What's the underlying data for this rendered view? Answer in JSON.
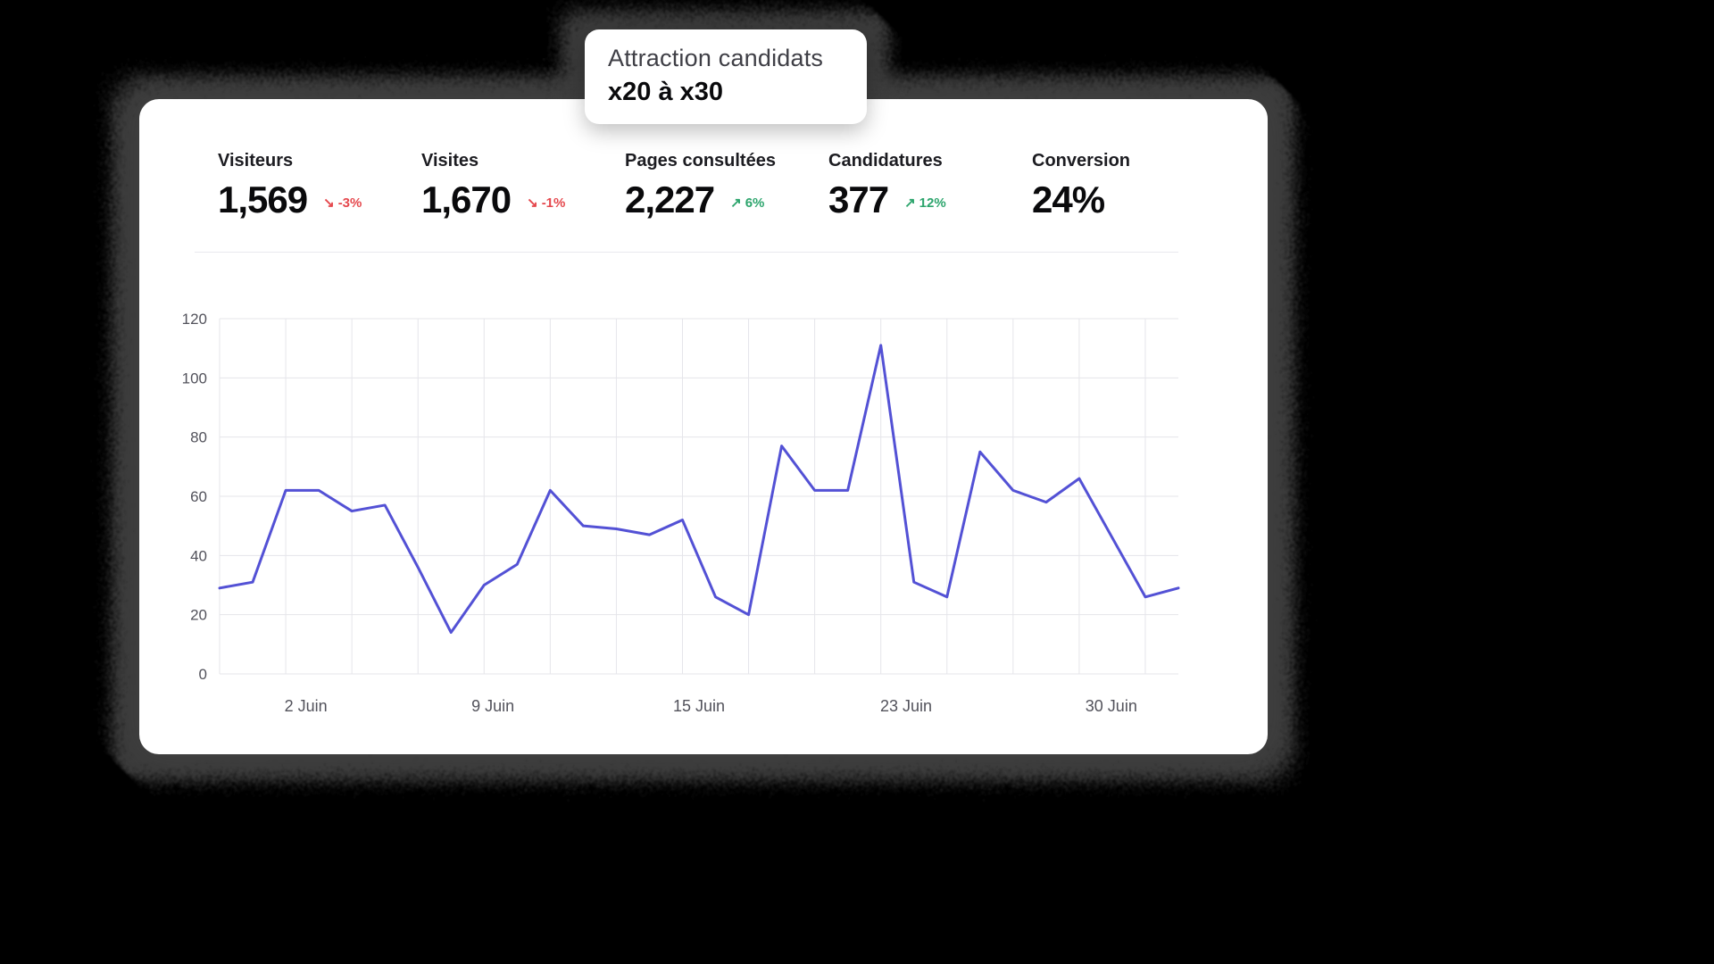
{
  "tooltip": {
    "title": "Attraction candidats",
    "subtitle": "x20 à x30"
  },
  "stats": [
    {
      "label": "Visiteurs",
      "value": "1,569",
      "delta": "-3%",
      "trend": "down",
      "icon": "trend-down-icon"
    },
    {
      "label": "Visites",
      "value": "1,670",
      "delta": "-1%",
      "trend": "down",
      "icon": "trend-down-icon"
    },
    {
      "label": "Pages consultées",
      "value": "2,227",
      "delta": "6%",
      "trend": "up",
      "icon": "trend-up-icon"
    },
    {
      "label": "Candidatures",
      "value": "377",
      "delta": "12%",
      "trend": "up",
      "icon": "trend-up-icon"
    },
    {
      "label": "Conversion",
      "value": "24%",
      "delta": null,
      "trend": null,
      "icon": null
    }
  ],
  "glyphs": {
    "trend_up": "↗",
    "trend_down": "↘"
  },
  "chart_data": {
    "type": "line",
    "title": "",
    "xlabel": "",
    "ylabel": "",
    "ylim": [
      0,
      120
    ],
    "y_ticks": [
      0,
      20,
      40,
      60,
      80,
      100,
      120
    ],
    "grid": true,
    "legend": false,
    "x_labels": [
      {
        "label": "2 Juin",
        "pos": 0.09
      },
      {
        "label": "9 Juin",
        "pos": 0.285
      },
      {
        "label": "15 Juin",
        "pos": 0.5
      },
      {
        "label": "23 Juin",
        "pos": 0.716
      },
      {
        "label": "30 Juin",
        "pos": 0.93
      }
    ],
    "values": [
      29,
      31,
      62,
      62,
      55,
      57,
      36,
      14,
      30,
      37,
      62,
      50,
      49,
      47,
      52,
      26,
      20,
      77,
      62,
      62,
      111,
      31,
      26,
      75,
      62,
      58,
      66,
      46,
      26,
      29
    ]
  },
  "colors": {
    "line": "#5351d5",
    "grid": "#e5e5ea",
    "axis_text": "#52525b",
    "negative": "#e5484d",
    "positive": "#2da56d",
    "card_bg": "#ffffff",
    "page_bg": "#000000"
  }
}
